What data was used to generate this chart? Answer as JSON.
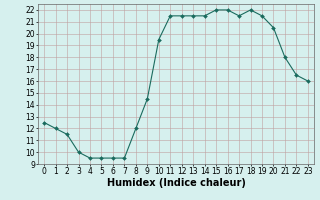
{
  "x": [
    0,
    1,
    2,
    3,
    4,
    5,
    6,
    7,
    8,
    9,
    10,
    11,
    12,
    13,
    14,
    15,
    16,
    17,
    18,
    19,
    20,
    21,
    22,
    23
  ],
  "y": [
    12.5,
    12.0,
    11.5,
    10.0,
    9.5,
    9.5,
    9.5,
    9.5,
    12.0,
    14.5,
    19.5,
    21.5,
    21.5,
    21.5,
    21.5,
    22.0,
    22.0,
    21.5,
    22.0,
    21.5,
    20.5,
    18.0,
    16.5,
    16.0
  ],
  "line_color": "#1a6b5e",
  "marker": "D",
  "marker_size": 2.0,
  "bg_color": "#d6f0ee",
  "grid_color_major": "#c8a0a0",
  "grid_color_minor": "#b8d8d4",
  "xlabel": "Humidex (Indice chaleur)",
  "xlabel_fontsize": 7,
  "tick_fontsize": 6,
  "ylim": [
    9,
    22.5
  ],
  "xlim": [
    -0.5,
    23.5
  ],
  "yticks": [
    9,
    10,
    11,
    12,
    13,
    14,
    15,
    16,
    17,
    18,
    19,
    20,
    21,
    22
  ],
  "xticks": [
    0,
    1,
    2,
    3,
    4,
    5,
    6,
    7,
    8,
    9,
    10,
    11,
    12,
    13,
    14,
    15,
    16,
    17,
    18,
    19,
    20,
    21,
    22,
    23
  ]
}
